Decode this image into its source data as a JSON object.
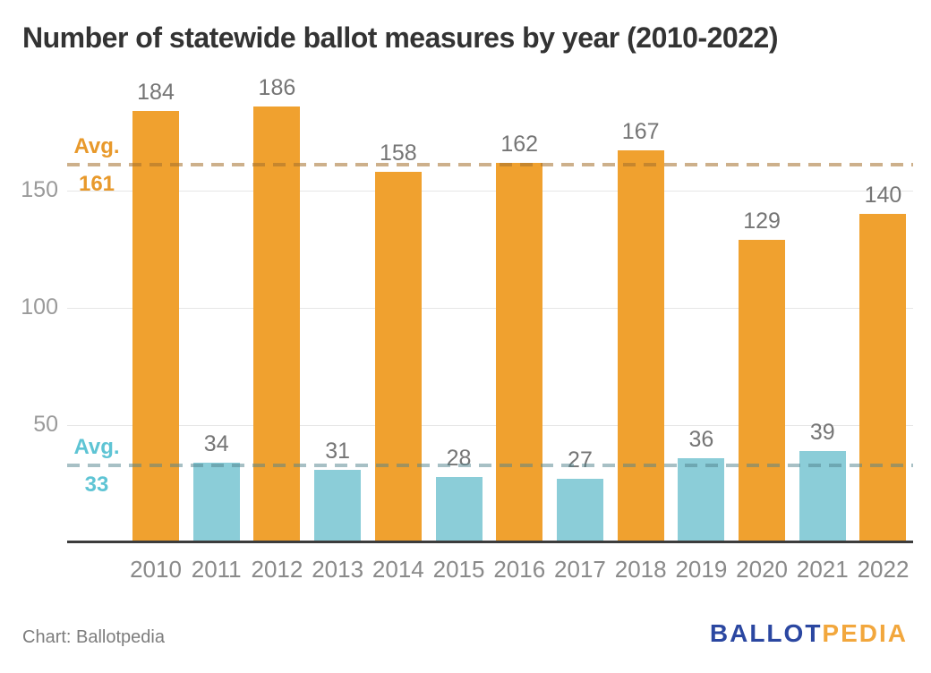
{
  "title": "Number of statewide ballot measures by year (2010-2022)",
  "footer": {
    "source": "Chart: Ballotpedia"
  },
  "logo": {
    "ballot": "BALLOT",
    "pedia": "PEDIA",
    "ballot_color": "#2B47A1",
    "pedia_color": "#F2A73D"
  },
  "colors": {
    "orange_bar": "#F0A12F",
    "teal_bar": "#8BCDD8",
    "orange_dash": "rgba(164,112,44,0.55)",
    "teal_dash": "rgba(80,130,140,0.5)",
    "orange_label": "#E8992B",
    "teal_label": "#5EC4D4",
    "grid": "#E6E6E6",
    "axis": "#3C3C3C",
    "tick_text": "#9A9A9A",
    "value_text": "#757575",
    "year_text": "#8A8A8A",
    "title_text": "#333333"
  },
  "chart_data": {
    "type": "bar",
    "title": "Number of statewide ballot measures by year (2010-2022)",
    "categories": [
      "2010",
      "2011",
      "2012",
      "2013",
      "2014",
      "2015",
      "2016",
      "2017",
      "2018",
      "2019",
      "2020",
      "2021",
      "2022"
    ],
    "values": [
      184,
      34,
      186,
      31,
      158,
      28,
      162,
      27,
      167,
      36,
      129,
      39,
      140
    ],
    "bar_color_keys": [
      "orange_bar",
      "teal_bar",
      "orange_bar",
      "teal_bar",
      "orange_bar",
      "teal_bar",
      "orange_bar",
      "teal_bar",
      "orange_bar",
      "teal_bar",
      "orange_bar",
      "teal_bar",
      "orange_bar"
    ],
    "average_lines": [
      {
        "label": "Avg.",
        "value": 161,
        "line_color_key": "orange_dash",
        "text_color_key": "orange_label"
      },
      {
        "label": "Avg.",
        "value": 33,
        "line_color_key": "teal_dash",
        "text_color_key": "teal_label"
      }
    ],
    "y_axis": {
      "ticks": [
        50,
        100,
        150
      ],
      "range": [
        0,
        200
      ]
    },
    "xlabel": "",
    "ylabel": "",
    "grid": true,
    "legend": "none",
    "source": "Chart: Ballotpedia"
  }
}
